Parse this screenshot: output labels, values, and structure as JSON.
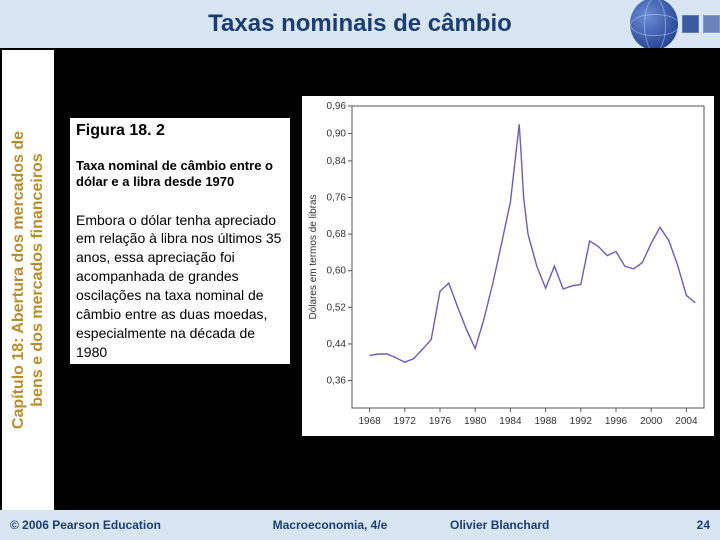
{
  "title": "Taxas nominais de câmbio",
  "sidebar": {
    "line1": "Capítulo 18: Abertura dos mercados de",
    "line2": "bens e dos mercados financeiros"
  },
  "figure": {
    "label": "Figura 18. 2",
    "caption": "Taxa nominal de câmbio entre o dólar e a libra desde 1970",
    "body": "Embora o dólar tenha apreciado em relação à libra nos últimos 35 anos, essa apreciação foi acompanhada de grandes oscilações na taxa nominal de câmbio entre as duas moedas, especialmente na década de 1980"
  },
  "chart": {
    "type": "line",
    "y_axis_label": "Dólares em termos de libras",
    "ylim": [
      0.3,
      0.96
    ],
    "yticks": [
      0.36,
      0.44,
      0.52,
      0.6,
      0.68,
      0.76,
      0.84,
      0.9,
      0.96
    ],
    "ytick_labels": [
      "0,36",
      "0,44",
      "0,52",
      "0,60",
      "0,68",
      "0,76",
      "0,84",
      "0,90",
      "0,96"
    ],
    "xlim": [
      1966,
      2006
    ],
    "xticks": [
      1968,
      1972,
      1976,
      1980,
      1984,
      1988,
      1992,
      1996,
      2000,
      2004
    ],
    "series_color": "#6a5cc0",
    "background_color": "#ffffff",
    "line_width": 1.4,
    "data": [
      [
        1968,
        0.415
      ],
      [
        1969,
        0.418
      ],
      [
        1970,
        0.418
      ],
      [
        1971,
        0.41
      ],
      [
        1972,
        0.4
      ],
      [
        1973,
        0.408
      ],
      [
        1974,
        0.428
      ],
      [
        1975,
        0.45
      ],
      [
        1976,
        0.555
      ],
      [
        1977,
        0.573
      ],
      [
        1978,
        0.521
      ],
      [
        1979,
        0.472
      ],
      [
        1980,
        0.43
      ],
      [
        1981,
        0.495
      ],
      [
        1982,
        0.572
      ],
      [
        1983,
        0.66
      ],
      [
        1984,
        0.75
      ],
      [
        1985,
        0.92
      ],
      [
        1985.2,
        0.86
      ],
      [
        1985.5,
        0.76
      ],
      [
        1986,
        0.68
      ],
      [
        1987,
        0.61
      ],
      [
        1988,
        0.562
      ],
      [
        1989,
        0.61
      ],
      [
        1990,
        0.56
      ],
      [
        1991,
        0.567
      ],
      [
        1992,
        0.57
      ],
      [
        1993,
        0.665
      ],
      [
        1994,
        0.653
      ],
      [
        1995,
        0.633
      ],
      [
        1996,
        0.642
      ],
      [
        1997,
        0.61
      ],
      [
        1998,
        0.604
      ],
      [
        1999,
        0.618
      ],
      [
        2000,
        0.66
      ],
      [
        2001,
        0.695
      ],
      [
        2002,
        0.666
      ],
      [
        2003,
        0.612
      ],
      [
        2004,
        0.546
      ],
      [
        2005,
        0.53
      ]
    ]
  },
  "footer": {
    "copyright": "© 2006 Pearson Education",
    "book": "Macroeconomia, 4/e",
    "author": "Olivier Blanchard",
    "page": "24"
  },
  "colors": {
    "title_bg": "#d8e6f4",
    "title_fg": "#1a3e73",
    "sidebar_fg": "#ba8d26",
    "body_bg": "#000000"
  }
}
